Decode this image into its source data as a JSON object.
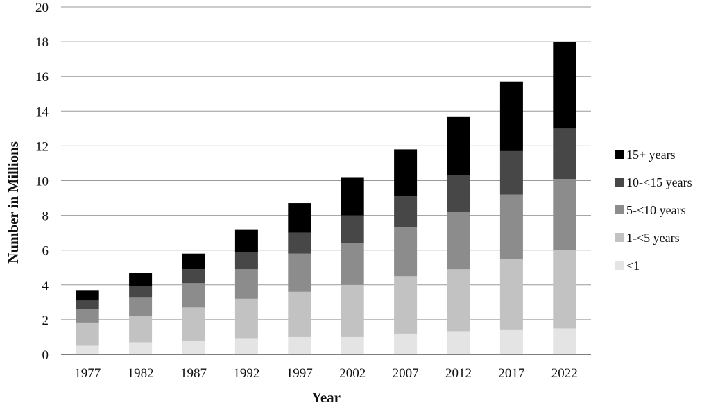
{
  "chart_data": {
    "type": "bar",
    "stacked": true,
    "title": "",
    "xlabel": "Year",
    "ylabel": "Number in Millions",
    "ylim": [
      0,
      20
    ],
    "yticks": [
      "0",
      "2",
      "4",
      "6",
      "8",
      "10",
      "12",
      "14",
      "16",
      "18",
      "20"
    ],
    "grid": true,
    "legend_position": "right",
    "categories": [
      "1977",
      "1982",
      "1987",
      "1992",
      "1997",
      "2002",
      "2007",
      "2012",
      "2017",
      "2022"
    ],
    "series": [
      {
        "name": "<1",
        "color": "#e4e4e4",
        "values": [
          0.5,
          0.7,
          0.8,
          0.9,
          1.0,
          1.0,
          1.2,
          1.3,
          1.4,
          1.5
        ]
      },
      {
        "name": "1-<5 years",
        "color": "#c2c2c2",
        "values": [
          1.3,
          1.5,
          1.9,
          2.3,
          2.6,
          3.0,
          3.3,
          3.6,
          4.1,
          4.5
        ]
      },
      {
        "name": "5-<10 years",
        "color": "#8c8c8c",
        "values": [
          0.8,
          1.1,
          1.4,
          1.7,
          2.2,
          2.4,
          2.8,
          3.3,
          3.7,
          4.1
        ]
      },
      {
        "name": "10-<15 years",
        "color": "#474747",
        "values": [
          0.5,
          0.6,
          0.8,
          1.0,
          1.2,
          1.6,
          1.8,
          2.1,
          2.5,
          2.9
        ]
      },
      {
        "name": "15+ years",
        "color": "#000000",
        "values": [
          0.6,
          0.8,
          0.9,
          1.3,
          1.7,
          2.2,
          2.7,
          3.4,
          4.0,
          5.0
        ]
      }
    ]
  }
}
